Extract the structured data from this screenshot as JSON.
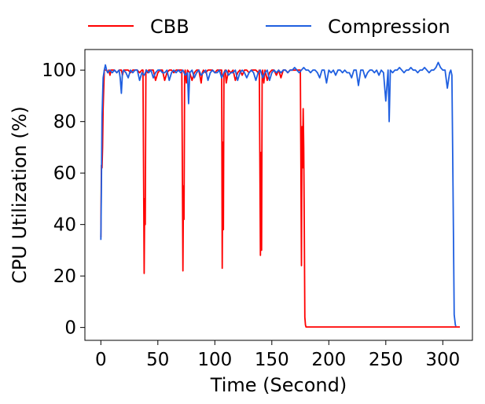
{
  "chart_data": {
    "type": "line",
    "xlabel": "Time (Second)",
    "ylabel": "CPU Utilization (%)",
    "xlim": [
      -14,
      326
    ],
    "ylim": [
      -5,
      108
    ],
    "xticks": [
      0,
      50,
      100,
      150,
      200,
      250,
      300
    ],
    "yticks": [
      0,
      20,
      40,
      60,
      80,
      100
    ],
    "grid": false,
    "legend_position": "top, above plot",
    "series": [
      {
        "name": "CBB",
        "color": "#ff0000",
        "x": [
          0,
          0.5,
          1,
          1.5,
          2,
          3,
          4,
          5,
          6,
          7,
          8,
          9,
          10,
          12,
          14,
          16,
          18,
          19,
          20,
          22,
          24,
          26,
          28,
          30,
          32,
          34,
          36,
          37,
          38,
          38.5,
          39,
          39.5,
          40,
          41,
          42,
          44,
          46,
          48,
          50,
          52,
          53,
          54,
          56,
          58,
          60,
          62,
          64,
          66,
          68,
          70,
          71,
          72,
          72.5,
          73,
          73.5,
          74,
          75,
          76,
          78,
          80,
          82,
          84,
          86,
          88,
          89,
          90,
          92,
          94,
          96,
          98,
          100,
          102,
          104,
          105,
          106,
          106.5,
          107,
          107.5,
          108,
          109,
          110,
          112,
          114,
          116,
          118,
          120,
          122,
          124,
          126,
          128,
          130,
          132,
          134,
          136,
          138,
          139,
          140,
          140.5,
          141,
          141.5,
          142,
          143,
          144,
          146,
          148,
          150,
          152,
          154,
          156,
          158,
          160,
          162,
          164,
          166,
          168,
          170,
          172,
          174,
          175,
          176,
          176.5,
          177,
          177.5,
          178,
          178.5,
          179,
          179.5,
          180,
          181,
          182,
          185,
          190,
          200,
          220,
          250,
          280,
          300,
          310,
          315
        ],
        "y": [
          35,
          63,
          62,
          70,
          85,
          100,
          100,
          100,
          99,
          100,
          98,
          100,
          100,
          100,
          99,
          100,
          100,
          98,
          100,
          100,
          100,
          99,
          100,
          100,
          100,
          99,
          100,
          100,
          21,
          50,
          40,
          100,
          100,
          99,
          100,
          100,
          100,
          96,
          99,
          100,
          100,
          100,
          96,
          99,
          100,
          100,
          99,
          100,
          100,
          100,
          100,
          22,
          55,
          42,
          99,
          100,
          95,
          100,
          99,
          96,
          99,
          100,
          100,
          95,
          99,
          100,
          99,
          100,
          100,
          100,
          99,
          100,
          100,
          100,
          100,
          23,
          72,
          38,
          99,
          100,
          95,
          100,
          99,
          100,
          96,
          99,
          100,
          98,
          100,
          100,
          99,
          100,
          100,
          100,
          99,
          100,
          28,
          68,
          30,
          99,
          100,
          95,
          100,
          96,
          99,
          100,
          100,
          98,
          100,
          97,
          100,
          100,
          99,
          100,
          100,
          100,
          100,
          100,
          100,
          24,
          78,
          62,
          85,
          70,
          40,
          4,
          1,
          0.2,
          0.2,
          0.2,
          0.2,
          0.2,
          0.2,
          0.2,
          0.2,
          0.2,
          0.2,
          0.2,
          0.2
        ]
      },
      {
        "name": "Compression",
        "color": "#1f5fe0",
        "x": [
          0,
          0.5,
          1,
          2,
          3,
          4,
          5,
          6,
          8,
          10,
          12,
          14,
          16,
          17,
          18,
          19,
          20,
          22,
          24,
          26,
          28,
          30,
          32,
          34,
          36,
          38,
          40,
          42,
          44,
          46,
          48,
          50,
          52,
          54,
          56,
          58,
          60,
          62,
          64,
          66,
          68,
          70,
          72,
          74,
          76,
          77,
          78,
          80,
          82,
          84,
          86,
          88,
          90,
          92,
          94,
          96,
          98,
          100,
          102,
          104,
          106,
          108,
          110,
          112,
          114,
          116,
          118,
          120,
          122,
          124,
          126,
          128,
          130,
          132,
          134,
          136,
          138,
          140,
          142,
          144,
          146,
          148,
          150,
          152,
          154,
          156,
          158,
          160,
          162,
          164,
          166,
          168,
          170,
          172,
          174,
          176,
          178,
          180,
          182,
          184,
          186,
          188,
          190,
          192,
          194,
          196,
          198,
          200,
          202,
          204,
          206,
          208,
          210,
          212,
          214,
          216,
          218,
          220,
          222,
          224,
          226,
          228,
          230,
          232,
          234,
          236,
          238,
          240,
          242,
          244,
          246,
          248,
          250,
          252,
          253,
          254,
          256,
          258,
          260,
          262,
          264,
          266,
          268,
          270,
          272,
          274,
          276,
          278,
          280,
          282,
          284,
          286,
          288,
          290,
          292,
          294,
          296,
          298,
          300,
          302,
          304,
          306,
          307,
          308,
          309,
          310,
          311,
          311.5
        ],
        "y": [
          34,
          55,
          82,
          97,
          100,
          102,
          100,
          99,
          100,
          99,
          100,
          99,
          100,
          97,
          91,
          99,
          100,
          99,
          97,
          100,
          99,
          100,
          100,
          96,
          99,
          98,
          100,
          99,
          100,
          97,
          99,
          100,
          100,
          99,
          99,
          100,
          96,
          99,
          100,
          99,
          100,
          99,
          100,
          98,
          99,
          87,
          99,
          100,
          97,
          99,
          100,
          98,
          99,
          100,
          96,
          99,
          100,
          99,
          99,
          100,
          97,
          99,
          100,
          98,
          99,
          99,
          100,
          96,
          99,
          100,
          99,
          97,
          99,
          100,
          99,
          96,
          99,
          100,
          97,
          99,
          100,
          96,
          99,
          100,
          99,
          100,
          99,
          100,
          100,
          99,
          100,
          100,
          101,
          100,
          99,
          100,
          101,
          100,
          100,
          99,
          100,
          100,
          99,
          97,
          100,
          100,
          95,
          100,
          99,
          100,
          98,
          100,
          100,
          99,
          100,
          99,
          99,
          97,
          100,
          100,
          94,
          100,
          100,
          97,
          99,
          100,
          100,
          99,
          100,
          98,
          100,
          99,
          88,
          100,
          80,
          100,
          99,
          100,
          100,
          101,
          100,
          99,
          100,
          100,
          101,
          100,
          100,
          99,
          100,
          100,
          101,
          100,
          99,
          100,
          100,
          101,
          103,
          101,
          100,
          100,
          93,
          99,
          100,
          98,
          55,
          5,
          1,
          0.5
        ]
      }
    ]
  }
}
